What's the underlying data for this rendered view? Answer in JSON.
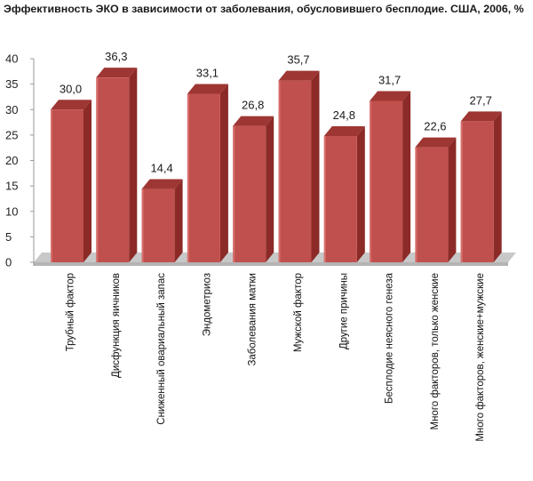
{
  "chart_data": {
    "type": "bar",
    "title": "Эффективность ЭКО в зависимости от заболевания, обусловившего бесплодие. США, 2006, %",
    "xlabel": "",
    "ylabel": "",
    "categories": [
      "Трубный фактор",
      "Дисфункция яичников",
      "Сниженный овариальный запас",
      "Эндометриоз",
      "Заболевания матки",
      "Мужской фактор",
      "Другие причины",
      "Бесплодие неясного генеза",
      "Много факторов, только женские",
      "Много факторов, женские+мужские"
    ],
    "values": [
      30.0,
      36.3,
      14.4,
      33.1,
      26.8,
      35.7,
      24.8,
      31.7,
      22.6,
      27.7
    ],
    "value_labels": [
      "30,0",
      "36,3",
      "14,4",
      "33,1",
      "26,8",
      "35,7",
      "24,8",
      "31,7",
      "22,6",
      "27,7"
    ],
    "ylim": [
      0,
      40
    ],
    "yticks": [
      0,
      5,
      10,
      15,
      20,
      25,
      30,
      35,
      40
    ],
    "grid": false,
    "legend": "none",
    "colors": {
      "bar_front": "#c0504d",
      "bar_side": "#8b2a27",
      "bar_top": "#9e3633",
      "floor": "#c8c8c8",
      "axis": "#9a9a9a"
    }
  }
}
